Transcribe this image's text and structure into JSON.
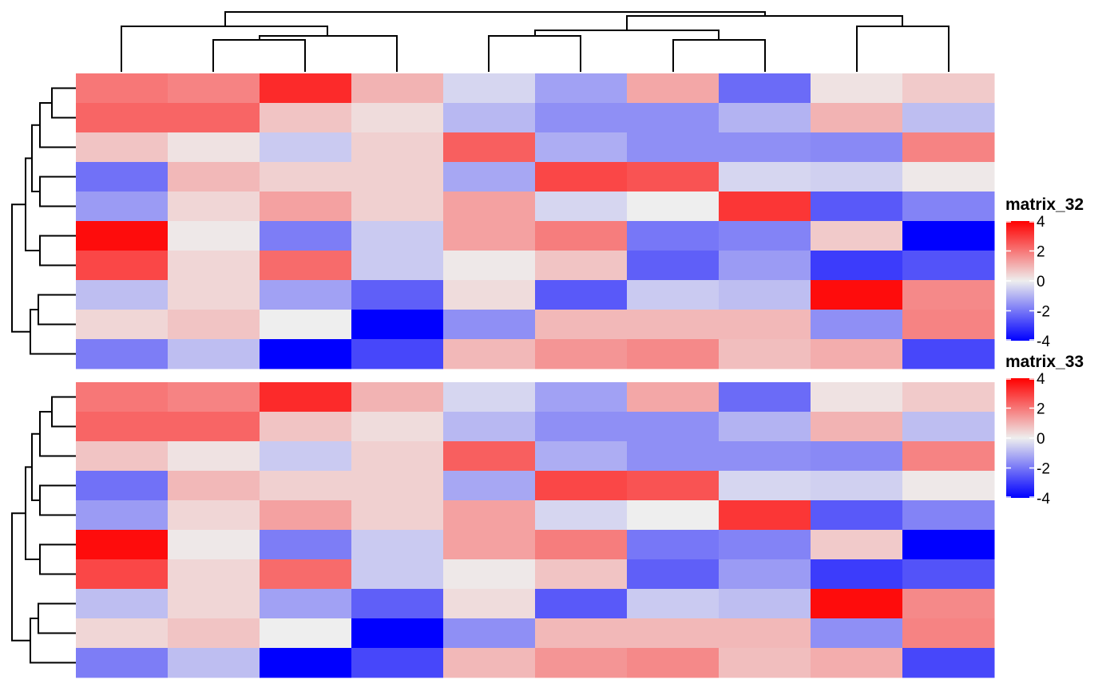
{
  "chart_data": {
    "type": "heatmap",
    "matrices": [
      {
        "name": "matrix_32",
        "values": [
          [
            2.0,
            1.8,
            3.3,
            1.0,
            -0.4,
            -1.3,
            1.2,
            -2.2,
            0.2,
            0.6
          ],
          [
            2.3,
            2.3,
            0.7,
            0.3,
            -0.9,
            -1.6,
            -1.6,
            -1.0,
            1.0,
            -0.8
          ],
          [
            0.7,
            0.2,
            -0.6,
            0.5,
            2.4,
            -1.1,
            -1.6,
            -1.6,
            -1.7,
            1.8
          ],
          [
            -2.1,
            0.9,
            0.5,
            0.5,
            -1.2,
            2.8,
            2.6,
            -0.4,
            -0.5,
            0.1
          ],
          [
            -1.4,
            0.4,
            1.3,
            0.5,
            1.3,
            -0.4,
            0.0,
            3.1,
            -2.5,
            -1.8
          ],
          [
            3.8,
            0.1,
            -1.9,
            -0.6,
            1.3,
            1.9,
            -2.0,
            -1.8,
            0.6,
            -4.0
          ],
          [
            2.8,
            0.4,
            2.2,
            -0.6,
            0.1,
            0.7,
            -2.4,
            -1.4,
            -3.0,
            -2.6
          ],
          [
            -0.8,
            0.4,
            -1.3,
            -2.4,
            0.3,
            -2.5,
            -0.6,
            -0.8,
            3.8,
            1.7
          ],
          [
            0.4,
            0.7,
            0.0,
            -4.8,
            -1.6,
            0.9,
            0.9,
            0.9,
            -1.6,
            1.8
          ],
          [
            -1.9,
            -0.8,
            -5.2,
            -2.8,
            0.9,
            1.5,
            1.7,
            0.8,
            1.1,
            -2.8
          ]
        ]
      },
      {
        "name": "matrix_33",
        "values": [
          [
            2.0,
            1.8,
            3.3,
            1.0,
            -0.4,
            -1.3,
            1.2,
            -2.2,
            0.2,
            0.6
          ],
          [
            2.3,
            2.3,
            0.7,
            0.3,
            -0.9,
            -1.6,
            -1.6,
            -1.0,
            1.0,
            -0.8
          ],
          [
            0.7,
            0.2,
            -0.6,
            0.5,
            2.4,
            -1.1,
            -1.6,
            -1.6,
            -1.7,
            1.8
          ],
          [
            -2.1,
            0.9,
            0.5,
            0.5,
            -1.2,
            2.8,
            2.6,
            -0.4,
            -0.5,
            0.1
          ],
          [
            -1.4,
            0.4,
            1.3,
            0.5,
            1.3,
            -0.4,
            0.0,
            3.1,
            -2.5,
            -1.8
          ],
          [
            3.8,
            0.1,
            -1.9,
            -0.6,
            1.3,
            1.9,
            -2.0,
            -1.8,
            0.6,
            -4.0
          ],
          [
            2.8,
            0.4,
            2.2,
            -0.6,
            0.1,
            0.7,
            -2.4,
            -1.4,
            -3.0,
            -2.6
          ],
          [
            -0.8,
            0.4,
            -1.3,
            -2.4,
            0.3,
            -2.5,
            -0.6,
            -0.8,
            3.8,
            1.7
          ],
          [
            0.4,
            0.7,
            0.0,
            -4.8,
            -1.6,
            0.9,
            0.9,
            0.9,
            -1.6,
            1.8
          ],
          [
            -1.9,
            -0.8,
            -5.2,
            -2.8,
            0.9,
            1.5,
            1.7,
            0.8,
            1.1,
            -2.8
          ]
        ]
      }
    ],
    "color_scale": {
      "breaks": [
        -4,
        0,
        4
      ],
      "colors": [
        "#0000ff",
        "#eeeeee",
        "#ff0000"
      ],
      "ticks": [
        "4",
        "2",
        "0",
        "-2",
        "-4"
      ]
    },
    "legends": [
      {
        "title": "matrix_32"
      },
      {
        "title": "matrix_33"
      }
    ],
    "column_dendrogram": "(((1,2),3),4),(5,6),((7,8),(9,10))",
    "row_dendrogram": "((((1,2),3),(4,5)),(6,7)),(8,9),10",
    "grid": false
  }
}
